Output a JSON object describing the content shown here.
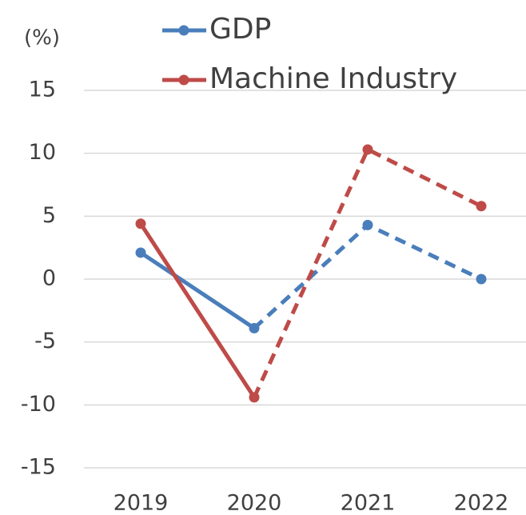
{
  "chart_data": {
    "type": "line",
    "y_unit_label": "(%)",
    "categories": [
      "2019",
      "2020",
      "2021",
      "2022"
    ],
    "series": [
      {
        "name": "GDP",
        "color": "#4a7ebb",
        "values": [
          2.1,
          -3.9,
          4.3,
          0
        ]
      },
      {
        "name": "Machine Industry",
        "color": "#be4b48",
        "values": [
          4.4,
          -9.4,
          10.3,
          5.8
        ]
      }
    ],
    "dashed_after": "2020",
    "ylim": [
      -15,
      15
    ],
    "yticks": [
      -15,
      -10,
      -5,
      0,
      5,
      10,
      15
    ],
    "grid": true
  }
}
